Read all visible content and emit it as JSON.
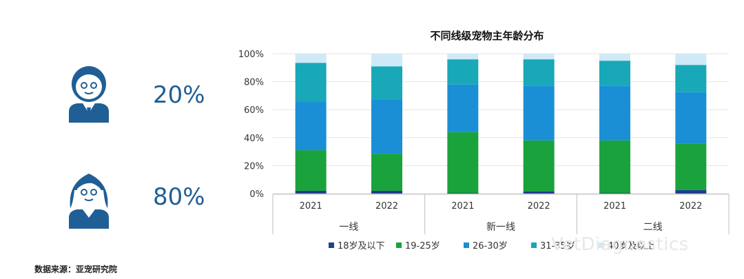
{
  "left_panel": {
    "male_percent": "20%",
    "female_percent": "80%",
    "male_icon": "man-avatar-icon",
    "female_icon": "woman-avatar-icon"
  },
  "source": "数据来源：亚宠研究院",
  "watermark": "VetDiagnostics",
  "colors": {
    "brand_blue": "#1f5f96",
    "s1": "#1f3f8f",
    "s2": "#1aa33c",
    "s3": "#1a8fd6",
    "s4": "#18a8b8",
    "s5": "#cfe9f6"
  },
  "chart_data": {
    "type": "bar",
    "stacked": true,
    "title": "不同线级宠物主年龄分布",
    "categories": [
      "2021",
      "2022",
      "2021",
      "2022",
      "2021",
      "2022"
    ],
    "groups": [
      {
        "label": "一线",
        "categories": [
          "2021",
          "2022"
        ]
      },
      {
        "label": "新一线",
        "categories": [
          "2021",
          "2022"
        ]
      },
      {
        "label": "二线",
        "categories": [
          "2021",
          "2022"
        ]
      }
    ],
    "series": [
      {
        "name": "18岁及以下",
        "color": "#1f3f8f",
        "values": [
          2,
          2,
          0.5,
          1.5,
          0.5,
          2.5
        ]
      },
      {
        "name": "19-25岁",
        "color": "#1aa33c",
        "values": [
          29,
          26.5,
          43.5,
          36.5,
          37.5,
          33
        ]
      },
      {
        "name": "26-30岁",
        "color": "#1a8fd6",
        "values": [
          34.5,
          38.5,
          34,
          39,
          39,
          37
        ]
      },
      {
        "name": "31-35岁",
        "color": "#18a8b8",
        "values": [
          28,
          24,
          18,
          19,
          18,
          19.5
        ]
      },
      {
        "name": "40岁及以上",
        "color": "#cfe9f6",
        "values": [
          6.5,
          9,
          4,
          4,
          5,
          8
        ]
      }
    ],
    "ylim": [
      0,
      100
    ],
    "yticks": [
      "0%",
      "20%",
      "40%",
      "60%",
      "80%",
      "100%"
    ],
    "xlabel": "",
    "ylabel": "",
    "legend": "bottom"
  }
}
